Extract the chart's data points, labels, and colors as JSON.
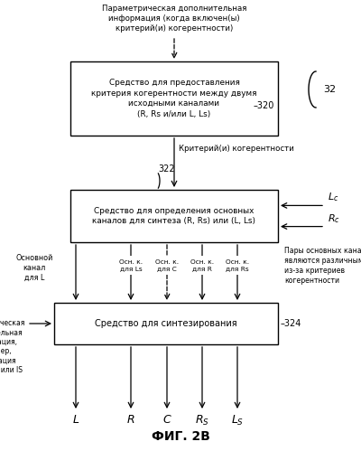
{
  "bg_color": "#ffffff",
  "box_color": "#ffffff",
  "box_edge_color": "#000000",
  "arrow_color": "#000000",
  "text_color": "#000000",
  "title": "ФИГ. 2B",
  "box1_text": "Средство для предоставления\nкритерия когерентности между двумя\nисходными каналами\n(R, Rs и/или L, Ls)",
  "box2_text": "Средство для определения основных\nканалов для синтеза (R, Rs) или (L, Ls)",
  "box3_text": "Средство для синтезирования",
  "top_text": "Параметрическая дополнительная\nинформация (когда включен(ы)\nкритерий(и) когерентности)",
  "arrow1_label": "Критерий(и) когерентности",
  "right_text": "Пары основных каналов\nявляются различными\nиз-за критериев\nкогерентности",
  "left_text1": "Основной\nканал\nдля L",
  "left_text2": "Параметрическая\nдополнительная\nинформация,\nнапример,\nинформация\nICLD, ICTD или IS",
  "col_labels": [
    "Осн. к.\nдля Ls",
    "Осн. к.\nдля С",
    "Осн. к.\nдля R",
    "Осн. к.\nдля Rs"
  ]
}
